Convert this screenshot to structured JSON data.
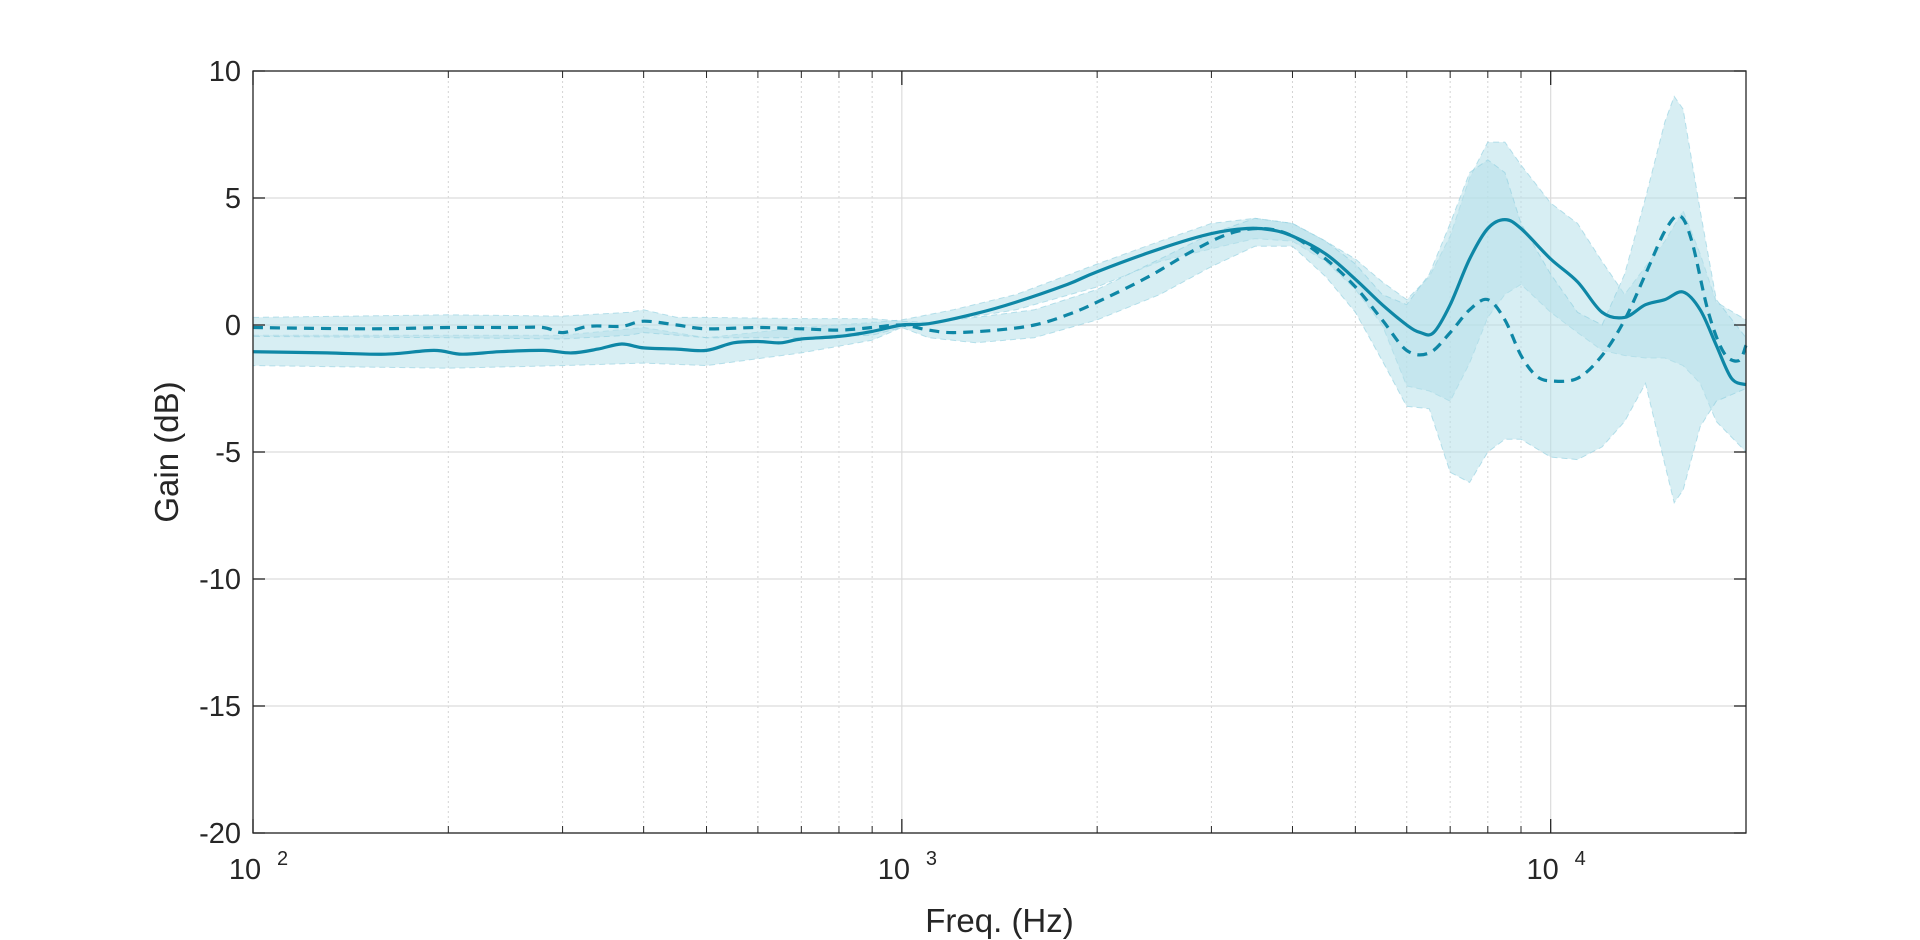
{
  "chart_data": {
    "type": "line",
    "title": "",
    "xlabel": "Freq. (Hz)",
    "ylabel": "Gain (dB)",
    "xscale": "log",
    "xlim": [
      100,
      20000
    ],
    "ylim": [
      -20,
      10
    ],
    "grid": true,
    "x_ticks": [
      {
        "value": 100,
        "base": "10",
        "exp": "2"
      },
      {
        "value": 1000,
        "base": "10",
        "exp": "3"
      },
      {
        "value": 10000,
        "base": "10",
        "exp": "4"
      }
    ],
    "y_ticks": [
      10,
      5,
      0,
      -5,
      -10,
      -15,
      -20
    ],
    "y_tick_labels": [
      "10",
      "5",
      "0",
      "-5",
      "-10",
      "-15",
      "-20"
    ],
    "colors": {
      "line": "#0e87a6",
      "band": "#b7e0ea",
      "band_edge": "#8fcfdf",
      "grid": "#dcdcdc",
      "axis": "#262626"
    },
    "series": [
      {
        "name": "solid",
        "style": "solid",
        "x": [
          100,
          130,
          160,
          190,
          210,
          240,
          280,
          310,
          340,
          370,
          400,
          450,
          500,
          550,
          600,
          650,
          700,
          800,
          900,
          1000,
          1100,
          1300,
          1500,
          1800,
          2000,
          2500,
          3000,
          3400,
          3700,
          4000,
          4500,
          5000,
          5500,
          6000,
          6300,
          6600,
          7000,
          7500,
          8000,
          8500,
          9000,
          10000,
          11000,
          12000,
          13000,
          14000,
          15000,
          16000,
          17000,
          18000,
          19000,
          20000
        ],
        "values": [
          -1.05,
          -1.1,
          -1.15,
          -1.0,
          -1.15,
          -1.05,
          -1.0,
          -1.1,
          -0.95,
          -0.75,
          -0.9,
          -0.95,
          -1.0,
          -0.7,
          -0.65,
          -0.7,
          -0.55,
          -0.45,
          -0.25,
          0.0,
          0.05,
          0.45,
          0.9,
          1.6,
          2.1,
          3.0,
          3.6,
          3.8,
          3.75,
          3.5,
          2.8,
          1.8,
          0.8,
          0.0,
          -0.3,
          -0.3,
          0.8,
          2.6,
          3.8,
          4.15,
          3.8,
          2.6,
          1.7,
          0.5,
          0.3,
          0.8,
          1.0,
          1.3,
          0.6,
          -0.8,
          -2.1,
          -2.35
        ]
      },
      {
        "name": "dashed",
        "style": "dashed",
        "x": [
          100,
          150,
          200,
          250,
          280,
          300,
          330,
          370,
          400,
          450,
          500,
          600,
          700,
          800,
          900,
          1000,
          1100,
          1200,
          1400,
          1600,
          1800,
          2000,
          2400,
          2800,
          3200,
          3600,
          4000,
          4500,
          5000,
          5500,
          6000,
          6500,
          7000,
          7500,
          8000,
          8500,
          9000,
          9500,
          10000,
          11000,
          12000,
          13000,
          14000,
          15000,
          15800,
          16500,
          17500,
          18500,
          19500,
          20000
        ],
        "values": [
          -0.1,
          -0.15,
          -0.1,
          -0.1,
          -0.1,
          -0.3,
          -0.05,
          -0.05,
          0.15,
          0.0,
          -0.15,
          -0.1,
          -0.15,
          -0.2,
          -0.1,
          0.0,
          -0.2,
          -0.3,
          -0.2,
          0.0,
          0.4,
          0.9,
          1.9,
          2.9,
          3.6,
          3.8,
          3.5,
          2.6,
          1.5,
          0.2,
          -1.0,
          -1.1,
          -0.3,
          0.6,
          1.0,
          0.2,
          -1.2,
          -2.0,
          -2.2,
          -2.1,
          -1.2,
          0.2,
          2.0,
          3.7,
          4.3,
          3.3,
          0.5,
          -1.1,
          -1.4,
          -0.8
        ]
      }
    ],
    "bands": [
      {
        "name": "solid-band",
        "x": [
          100,
          200,
          300,
          400,
          500,
          700,
          900,
          1000,
          1200,
          1500,
          2000,
          2500,
          3000,
          3500,
          4000,
          4500,
          5000,
          5500,
          6000,
          6500,
          7000,
          7500,
          8000,
          8500,
          9000,
          10000,
          11000,
          12000,
          13000,
          14000,
          15000,
          16000,
          17000,
          18000,
          20000
        ],
        "upper": [
          -0.4,
          -0.4,
          -0.4,
          -0.1,
          -0.5,
          -0.1,
          0.1,
          0.2,
          0.6,
          1.2,
          2.4,
          3.3,
          4.0,
          4.2,
          4.0,
          3.3,
          2.6,
          1.7,
          1.0,
          1.9,
          3.5,
          5.8,
          7.2,
          7.2,
          6.3,
          4.8,
          4.0,
          2.5,
          1.2,
          2.3,
          3.3,
          4.5,
          2.8,
          0.9,
          0.2
        ],
        "lower": [
          -1.6,
          -1.7,
          -1.6,
          -1.5,
          -1.6,
          -1.1,
          -0.6,
          -0.1,
          0.2,
          0.6,
          1.5,
          2.5,
          3.0,
          3.4,
          3.3,
          2.5,
          1.4,
          0.0,
          -2.4,
          -2.6,
          -3.0,
          -1.5,
          0.3,
          1.2,
          1.6,
          0.5,
          -0.3,
          -1.0,
          -1.2,
          -1.3,
          -1.3,
          -1.6,
          -2.3,
          -3.8,
          -5.0
        ]
      },
      {
        "name": "dashed-band",
        "x": [
          100,
          200,
          300,
          380,
          400,
          450,
          500,
          700,
          900,
          1000,
          1100,
          1300,
          1600,
          2000,
          2500,
          3000,
          3500,
          4000,
          4500,
          5000,
          5500,
          6000,
          6500,
          7000,
          7500,
          8000,
          8500,
          9000,
          10000,
          11000,
          12000,
          13000,
          14000,
          15000,
          15500,
          16000,
          17000,
          18000,
          20000
        ],
        "upper": [
          0.3,
          0.4,
          0.35,
          0.5,
          0.6,
          0.3,
          0.3,
          0.25,
          0.25,
          0.15,
          0.1,
          0.3,
          0.6,
          1.4,
          2.6,
          3.6,
          4.2,
          4.0,
          3.3,
          2.4,
          1.2,
          0.8,
          2.0,
          4.0,
          6.0,
          6.5,
          6.0,
          4.0,
          2.0,
          0.5,
          0.0,
          2.0,
          5.0,
          8.0,
          9.0,
          8.5,
          4.5,
          1.0,
          -0.5
        ],
        "lower": [
          -0.45,
          -0.5,
          -0.55,
          -0.4,
          -0.3,
          -0.4,
          -0.5,
          -0.5,
          -0.4,
          -0.1,
          -0.5,
          -0.7,
          -0.5,
          0.2,
          1.2,
          2.3,
          3.1,
          3.1,
          1.9,
          0.5,
          -1.4,
          -3.2,
          -3.3,
          -5.8,
          -6.2,
          -5.0,
          -4.5,
          -4.5,
          -5.2,
          -5.3,
          -4.8,
          -3.8,
          -2.3,
          -5.5,
          -7.0,
          -6.5,
          -4.0,
          -3.0,
          -2.5
        ]
      }
    ]
  }
}
